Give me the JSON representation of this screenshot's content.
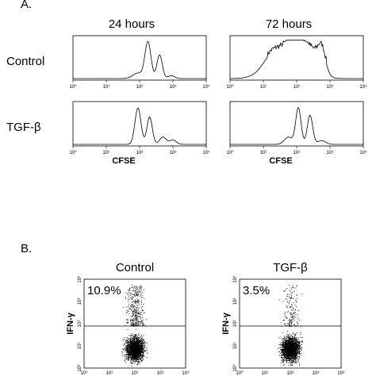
{
  "panel_a": {
    "label": "A.",
    "columns": [
      "24 hours",
      "72 hours"
    ],
    "rows": [
      "Control",
      "TGF-β"
    ],
    "axis_ticks": [
      "10⁰",
      "10¹",
      "10²",
      "10³",
      "10⁴"
    ],
    "x_label": "CFSE"
  },
  "panel_b": {
    "label": "B.",
    "columns": [
      "Control",
      "TGF-β"
    ],
    "y_label": "IFN-γ",
    "axis_ticks": [
      "10⁰",
      "10¹",
      "10²",
      "10³",
      "10⁴"
    ],
    "percentages": [
      "10.9%",
      "3.5%"
    ]
  }
}
